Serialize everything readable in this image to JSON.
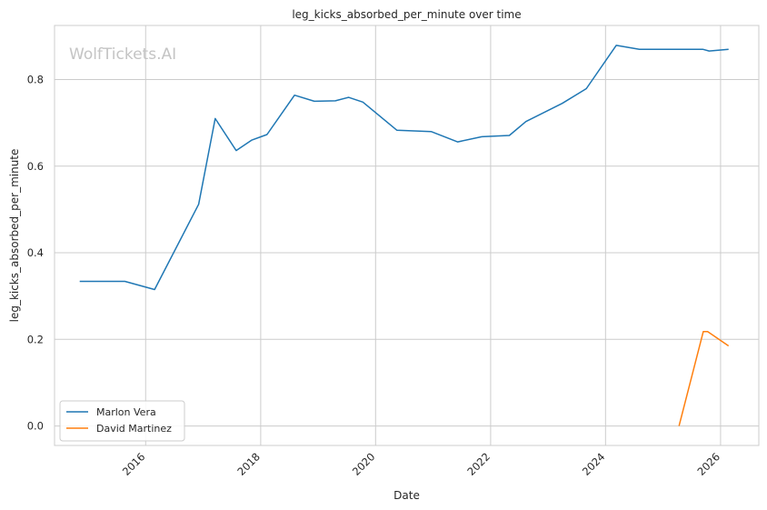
{
  "chart_data": {
    "type": "line",
    "title": "leg_kicks_absorbed_per_minute over time",
    "xlabel": "Date",
    "ylabel": "leg_kicks_absorbed_per_minute",
    "watermark": "WolfTickets.AI",
    "xlim": [
      "2014-06-01",
      "2026-09-01"
    ],
    "ylim": [
      -0.045,
      0.925
    ],
    "xticks": [
      "2016",
      "2018",
      "2020",
      "2022",
      "2024",
      "2026"
    ],
    "yticks": [
      "0.0",
      "0.2",
      "0.4",
      "0.6",
      "0.8"
    ],
    "grid": true,
    "legend_position": "lower-left",
    "series": [
      {
        "name": "Marlon Vera",
        "color": "#1f77b4",
        "x": [
          "2014-11-08",
          "2015-08-22",
          "2016-02-27",
          "2016-12-03",
          "2017-03-18",
          "2017-07-29",
          "2017-11-04",
          "2018-02-10",
          "2018-08-04",
          "2018-12-08",
          "2019-04-20",
          "2019-07-13",
          "2019-10-12",
          "2020-05-16",
          "2020-12-19",
          "2021-06-05",
          "2021-11-06",
          "2022-04-30",
          "2022-08-13",
          "2023-04-01",
          "2023-09-01",
          "2024-03-09",
          "2024-08-03",
          "2025-09-10",
          "2025-10-20",
          "2026-02-21"
        ],
        "y": [
          0.334,
          0.334,
          0.315,
          0.512,
          0.71,
          0.636,
          0.66,
          0.673,
          0.764,
          0.75,
          0.751,
          0.759,
          0.748,
          0.683,
          0.68,
          0.656,
          0.668,
          0.671,
          0.703,
          0.745,
          0.779,
          0.879,
          0.87,
          0.87,
          0.866,
          0.87
        ]
      },
      {
        "name": "David Martinez",
        "color": "#ff7f0e",
        "x": [
          "2025-04-12",
          "2025-09-13",
          "2025-10-11",
          "2026-02-21"
        ],
        "y": [
          0.0,
          0.218,
          0.218,
          0.185
        ]
      }
    ]
  }
}
